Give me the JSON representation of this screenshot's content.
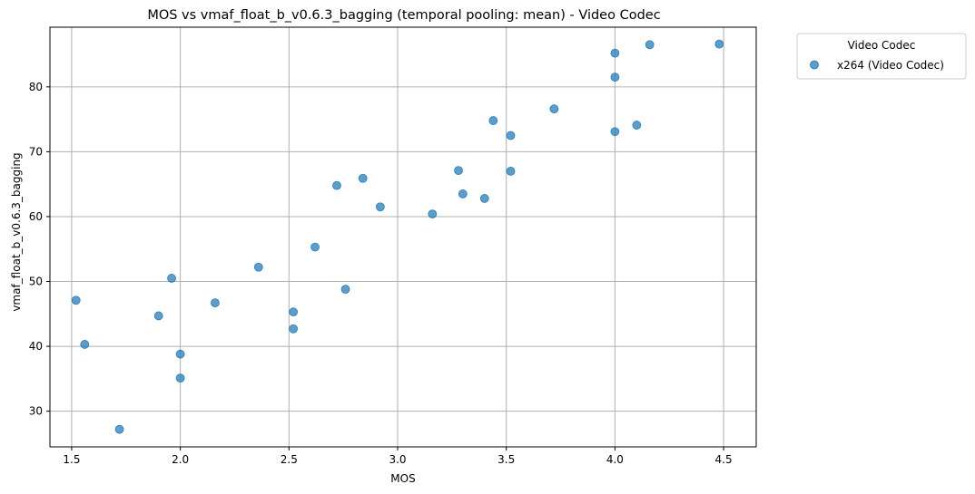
{
  "chart_data": {
    "type": "scatter",
    "title": "MOS vs vmaf_float_b_v0.6.3_bagging (temporal pooling: mean) - Video Codec",
    "xlabel": "MOS",
    "ylabel": "vmaf_float_b_v0.6.3_bagging",
    "xlim": [
      1.4,
      4.65
    ],
    "ylim": [
      24.5,
      89.2
    ],
    "xticks": [
      1.5,
      2.0,
      2.5,
      3.0,
      3.5,
      4.0,
      4.5
    ],
    "xtick_labels": [
      "1.5",
      "2.0",
      "2.5",
      "3.0",
      "3.5",
      "4.0",
      "4.5"
    ],
    "yticks": [
      30,
      40,
      50,
      60,
      70,
      80
    ],
    "ytick_labels": [
      "30",
      "40",
      "50",
      "60",
      "70",
      "80"
    ],
    "grid": true,
    "legend": {
      "title": "Video Codec",
      "position": "outside-top-right"
    },
    "series": [
      {
        "name": "x264 (Video Codec)",
        "color": "#1f77b4",
        "points": [
          {
            "x": 1.52,
            "y": 47.1
          },
          {
            "x": 1.56,
            "y": 40.3
          },
          {
            "x": 1.72,
            "y": 27.2
          },
          {
            "x": 1.9,
            "y": 44.7
          },
          {
            "x": 1.96,
            "y": 50.5
          },
          {
            "x": 2.0,
            "y": 38.8
          },
          {
            "x": 2.0,
            "y": 35.1
          },
          {
            "x": 2.16,
            "y": 46.7
          },
          {
            "x": 2.36,
            "y": 52.2
          },
          {
            "x": 2.52,
            "y": 45.3
          },
          {
            "x": 2.52,
            "y": 42.7
          },
          {
            "x": 2.62,
            "y": 55.3
          },
          {
            "x": 2.72,
            "y": 64.8
          },
          {
            "x": 2.76,
            "y": 48.8
          },
          {
            "x": 2.84,
            "y": 65.9
          },
          {
            "x": 2.92,
            "y": 61.5
          },
          {
            "x": 3.16,
            "y": 60.4
          },
          {
            "x": 3.28,
            "y": 67.1
          },
          {
            "x": 3.3,
            "y": 63.5
          },
          {
            "x": 3.4,
            "y": 62.8
          },
          {
            "x": 3.44,
            "y": 74.8
          },
          {
            "x": 3.52,
            "y": 72.5
          },
          {
            "x": 3.52,
            "y": 67.0
          },
          {
            "x": 3.72,
            "y": 76.6
          },
          {
            "x": 4.0,
            "y": 85.2
          },
          {
            "x": 4.0,
            "y": 81.5
          },
          {
            "x": 4.0,
            "y": 73.1
          },
          {
            "x": 4.1,
            "y": 74.1
          },
          {
            "x": 4.16,
            "y": 86.5
          },
          {
            "x": 4.48,
            "y": 86.6
          }
        ]
      }
    ]
  }
}
